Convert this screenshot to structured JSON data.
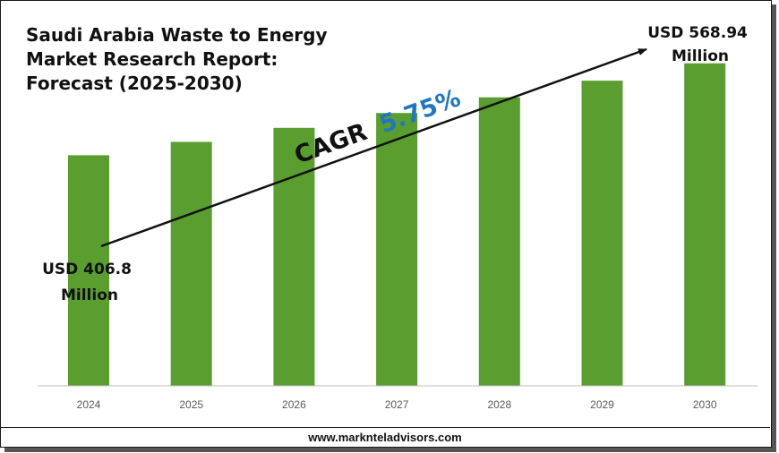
{
  "chart_data": {
    "type": "bar",
    "title": "Saudi Arabia Waste to Energy\nMarket Research Report:\nForecast (2025-2030)",
    "xlabel": "",
    "ylabel": "",
    "categories": [
      "2024",
      "2025",
      "2026",
      "2027",
      "2028",
      "2029",
      "2030"
    ],
    "values": [
      406.8,
      430.2,
      455.0,
      481.2,
      508.9,
      538.2,
      568.94
    ],
    "unit": "USD Million",
    "ylim": [
      0,
      630
    ],
    "grid": false,
    "legend": "none",
    "bar_color": "#5a9e2f",
    "axis_color": "#bfbfbf",
    "annotations": {
      "start_label": [
        "USD 406.8",
        "Million"
      ],
      "end_label": [
        "USD 568.94",
        "Million"
      ],
      "cagr_prefix": "CAGR",
      "cagr_value": "5.75%",
      "cagr_value_color": "#1f77c4"
    }
  },
  "footer": {
    "source": "www.marknteladvisors.com"
  }
}
